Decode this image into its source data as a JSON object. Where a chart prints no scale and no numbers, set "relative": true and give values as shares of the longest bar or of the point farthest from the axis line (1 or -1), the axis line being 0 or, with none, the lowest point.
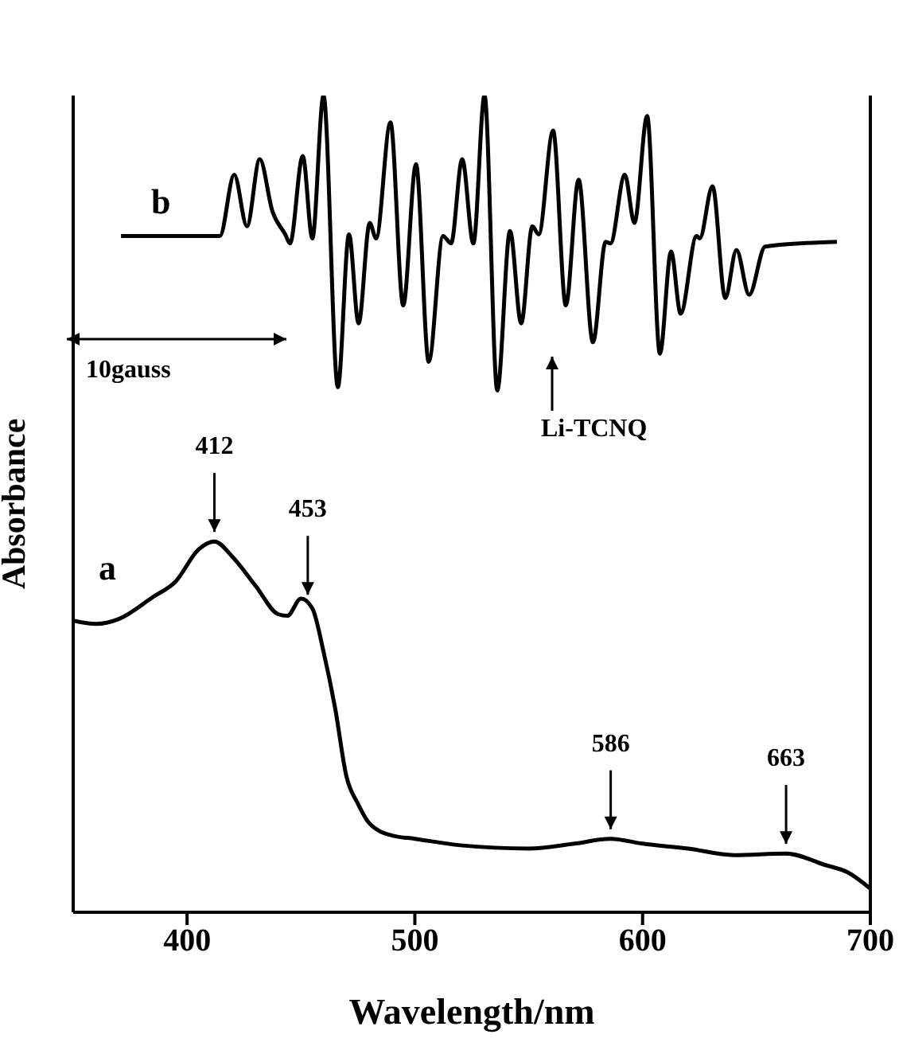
{
  "chart_data": {
    "type": "line",
    "relative": true,
    "xlabel": "Wavelength/nm",
    "ylabel": "Absorbance",
    "xlim": [
      350,
      700
    ],
    "xticks": [
      400,
      500,
      600,
      700
    ],
    "marker": "none",
    "line_style": "solid",
    "series": [
      {
        "name": "a",
        "color": "#000000",
        "x": [
          350,
          360,
          370,
          385,
          395,
          405,
          412,
          420,
          430,
          440,
          444,
          450,
          455,
          460,
          465,
          470,
          475,
          480,
          490,
          500,
          520,
          550,
          570,
          586,
          600,
          620,
          640,
          663,
          680,
          690,
          700
        ],
        "values": [
          0.357,
          0.353,
          0.359,
          0.386,
          0.405,
          0.444,
          0.454,
          0.435,
          0.4,
          0.365,
          0.363,
          0.384,
          0.372,
          0.318,
          0.25,
          0.166,
          0.133,
          0.109,
          0.094,
          0.09,
          0.082,
          0.078,
          0.084,
          0.09,
          0.084,
          0.078,
          0.07,
          0.072,
          0.058,
          0.049,
          0.029
        ]
      },
      {
        "name": "b",
        "color": "#000000",
        "x": [
          371,
          414.4,
          420.7,
          426.3,
          431.9,
          437.5,
          443.1,
          445.2,
          450.8,
          455,
          459.9,
          466.2,
          471.1,
          475.3,
          480.2,
          483,
          489.3,
          494.9,
          500.5,
          506.1,
          512.4,
          515.9,
          520.8,
          525.7,
          530.6,
          536.2,
          541.8,
          546.7,
          551.6,
          554.4,
          560.7,
          566.3,
          571.9,
          578.2,
          583.8,
          585.9,
          592.2,
          596.4,
          602,
          607.6,
          612.5,
          616.7,
          623.7,
          625.1,
          630.7,
          636.3,
          641.2,
          646.8,
          653.8,
          685.3
        ],
        "values": [
          0.828,
          0.828,
          0.903,
          0.84,
          0.922,
          0.858,
          0.83,
          0.819,
          0.926,
          0.825,
          1,
          0.643,
          0.83,
          0.721,
          0.844,
          0.825,
          0.967,
          0.743,
          0.916,
          0.674,
          0.828,
          0.819,
          0.922,
          0.819,
          1,
          0.639,
          0.834,
          0.721,
          0.84,
          0.83,
          0.957,
          0.743,
          0.897,
          0.698,
          0.821,
          0.819,
          0.903,
          0.844,
          0.975,
          0.684,
          0.809,
          0.733,
          0.828,
          0.825,
          0.889,
          0.752,
          0.811,
          0.756,
          0.815,
          0.821
        ]
      }
    ],
    "annotations": [
      {
        "text": "412",
        "x": 412,
        "y": 0.454
      },
      {
        "text": "453",
        "x": 453,
        "y": 0.377
      },
      {
        "text": "586",
        "x": 586,
        "y": 0.09
      },
      {
        "text": "663",
        "x": 663,
        "y": 0.072
      },
      "Li-TCNQ",
      "10gauss"
    ]
  }
}
